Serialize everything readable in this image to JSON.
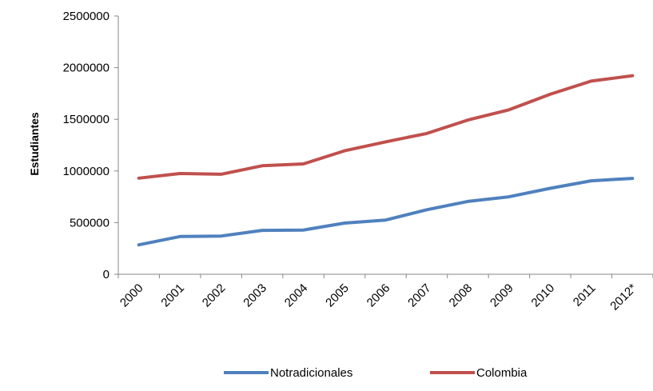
{
  "chart_data": {
    "type": "line",
    "categories": [
      "2000",
      "2001",
      "2002",
      "2003",
      "2004",
      "2005",
      "2006",
      "2007",
      "2008",
      "2009",
      "2010",
      "2011",
      "2012*"
    ],
    "series": [
      {
        "name": "Notradicionales",
        "color": "#4F81BD",
        "values": [
          285000,
          365000,
          370000,
          425000,
          428000,
          495000,
          525000,
          625000,
          705000,
          750000,
          832000,
          905000,
          928000
        ]
      },
      {
        "name": "Colombia",
        "color": "#C0504D",
        "values": [
          930000,
          975000,
          968000,
          1050000,
          1068000,
          1195000,
          1282000,
          1363000,
          1493000,
          1592000,
          1742000,
          1870000,
          1922000
        ]
      }
    ],
    "title": "",
    "xlabel": "",
    "ylabel": "Estudiantes",
    "ylim": [
      0,
      2500000
    ],
    "yticks": [
      0,
      500000,
      1000000,
      1500000,
      2000000,
      2500000
    ],
    "grid": false,
    "legend_position": "bottom"
  }
}
